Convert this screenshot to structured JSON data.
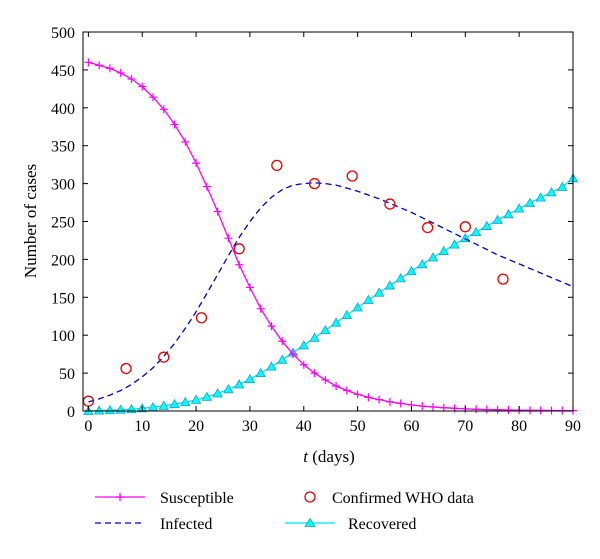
{
  "chart_data": {
    "type": "line",
    "xlabel_var": "t",
    "xlabel_unit": " (days)",
    "ylabel": "Number of cases",
    "xlim": [
      -1,
      90
    ],
    "ylim": [
      0,
      500
    ],
    "xticks": [
      0,
      10,
      20,
      30,
      40,
      50,
      60,
      70,
      80,
      90
    ],
    "yticks": [
      0,
      50,
      100,
      150,
      200,
      250,
      300,
      350,
      400,
      450,
      500
    ],
    "legend_position": "bottom",
    "colors": {
      "susceptible": "#ff00ff",
      "infected": "#0000cc",
      "confirmed": "#e60000",
      "recovered": "#00ffff",
      "recovered_edge": "#1aa0c8"
    },
    "series": [
      {
        "name": "Susceptible",
        "style": "solid-plus",
        "x": [
          0,
          2,
          4,
          6,
          8,
          10,
          12,
          14,
          16,
          18,
          20,
          22,
          24,
          26,
          28,
          30,
          32,
          34,
          36,
          38,
          40,
          42,
          44,
          46,
          48,
          50,
          52,
          54,
          56,
          58,
          60,
          62,
          64,
          66,
          68,
          70,
          72,
          74,
          76,
          78,
          80,
          82,
          84,
          86,
          88,
          90
        ],
        "values": [
          460,
          456,
          452,
          446,
          438,
          428,
          414,
          398,
          378,
          355,
          327,
          296,
          263,
          228,
          193,
          163,
          135,
          112,
          92,
          75,
          61,
          50,
          41,
          33,
          27,
          22,
          18,
          15,
          12,
          10,
          8,
          6.5,
          5.3,
          4.3,
          3.5,
          2.8,
          2.3,
          1.9,
          1.6,
          1.3,
          1.1,
          0.9,
          0.8,
          0.7,
          0.6,
          0.5
        ]
      },
      {
        "name": "Infected",
        "style": "dashed",
        "x": [
          0,
          2,
          4,
          6,
          8,
          10,
          12,
          14,
          16,
          18,
          20,
          22,
          24,
          26,
          28,
          30,
          32,
          34,
          36,
          38,
          40,
          42,
          44,
          46,
          48,
          50,
          52,
          54,
          56,
          58,
          60,
          62,
          64,
          66,
          68,
          70,
          72,
          74,
          76,
          78,
          80,
          82,
          84,
          86,
          88,
          90
        ],
        "values": [
          12,
          16,
          21,
          27,
          35,
          45,
          57,
          72,
          89,
          109,
          131,
          155,
          180,
          205,
          229,
          250,
          268,
          282,
          292,
          298,
          300,
          301,
          300,
          298,
          294,
          290,
          285,
          280,
          274,
          268,
          262,
          255,
          248,
          241,
          234,
          227,
          220,
          213,
          206,
          200,
          194,
          188,
          182,
          176,
          170,
          164
        ]
      },
      {
        "name": "Confirmed WHO data",
        "style": "circle",
        "x": [
          0,
          7,
          14,
          21,
          28,
          35,
          42,
          49,
          56,
          63,
          70,
          77
        ],
        "values": [
          13,
          56,
          71,
          123,
          214,
          324,
          300,
          310,
          273,
          242,
          243,
          174
        ]
      },
      {
        "name": "Recovered",
        "style": "solid-triangle",
        "x": [
          0,
          2,
          4,
          6,
          8,
          10,
          12,
          14,
          16,
          18,
          20,
          22,
          24,
          26,
          28,
          30,
          32,
          34,
          36,
          38,
          40,
          42,
          44,
          46,
          48,
          50,
          52,
          54,
          56,
          58,
          60,
          62,
          64,
          66,
          68,
          70,
          72,
          74,
          76,
          78,
          80,
          82,
          84,
          86,
          88,
          90
        ],
        "values": [
          0,
          0.5,
          1,
          1.6,
          2.4,
          3.5,
          5,
          6.8,
          9,
          11.6,
          14.7,
          18.6,
          23.2,
          28.6,
          35,
          42,
          50,
          58.5,
          67.5,
          77,
          86.5,
          96.5,
          106.5,
          116.5,
          126.5,
          136.5,
          146.5,
          156,
          165.5,
          175,
          184.5,
          193.5,
          202.5,
          211,
          219.5,
          228,
          236,
          244,
          252,
          259.5,
          267,
          274.5,
          281.5,
          288.5,
          295.5,
          307
        ]
      }
    ]
  }
}
